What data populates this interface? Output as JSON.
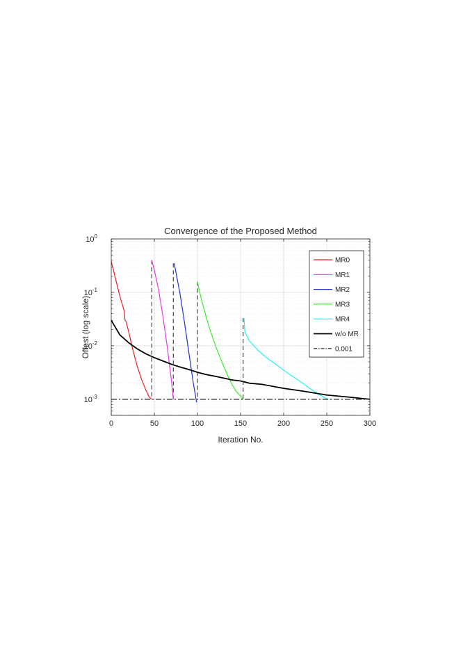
{
  "chart_data": {
    "type": "line",
    "title": "Convergence of the Proposed Method",
    "xlabel": "Iteration No.",
    "ylabel": "Offest (log scale)",
    "xlim": [
      0,
      300
    ],
    "ylim": [
      0.0005,
      1
    ],
    "yscale": "log",
    "grid": true,
    "minor_grid": true,
    "legend_position": "top-right",
    "x_ticks": [
      0,
      50,
      100,
      150,
      200,
      250,
      300
    ],
    "x_tick_labels": [
      "0",
      "50",
      "100",
      "150",
      "200",
      "250",
      "300"
    ],
    "y_ticks": [
      {
        "value": 1,
        "base": "10",
        "exp": "0"
      },
      {
        "value": 0.1,
        "base": "10",
        "exp": "-1"
      },
      {
        "value": 0.01,
        "base": "10",
        "exp": "-2"
      },
      {
        "value": 0.001,
        "base": "10",
        "exp": "-3"
      }
    ],
    "series": [
      {
        "name": "MR0",
        "color": "#e8211d",
        "style": "solid",
        "width": 1.2,
        "x": [
          0,
          5,
          10,
          15,
          16,
          17,
          20,
          25,
          30,
          35,
          40,
          44,
          47
        ],
        "y": [
          0.38,
          0.18,
          0.085,
          0.045,
          0.03,
          0.029,
          0.019,
          0.0085,
          0.0042,
          0.0024,
          0.0015,
          0.0011,
          0.001
        ]
      },
      {
        "name": "MR1",
        "color": "#e63ae6",
        "style": "solid",
        "width": 1.2,
        "x": [
          47,
          50,
          55,
          60,
          65,
          70,
          72
        ],
        "y": [
          0.4,
          0.26,
          0.11,
          0.035,
          0.0095,
          0.0021,
          0.001
        ]
      },
      {
        "name": "MR2",
        "color": "#1c2fd1",
        "style": "solid",
        "width": 1.2,
        "x": [
          73,
          75,
          80,
          85,
          90,
          95,
          99
        ],
        "y": [
          0.35,
          0.24,
          0.09,
          0.027,
          0.0075,
          0.0021,
          0.00088
        ]
      },
      {
        "name": "MR3",
        "color": "#3cea2a",
        "style": "solid",
        "width": 1.2,
        "x": [
          100,
          102,
          105,
          110,
          115,
          120,
          125,
          130,
          135,
          140,
          145,
          150,
          153
        ],
        "y": [
          0.16,
          0.11,
          0.07,
          0.035,
          0.019,
          0.011,
          0.0068,
          0.0043,
          0.0028,
          0.0019,
          0.0014,
          0.00115,
          0.001
        ]
      },
      {
        "name": "MR4",
        "color": "#27f2f2",
        "style": "solid",
        "width": 1.2,
        "x": [
          154,
          155,
          160,
          170,
          180,
          190,
          200,
          210,
          220,
          230,
          240,
          250,
          252
        ],
        "y": [
          0.033,
          0.018,
          0.0125,
          0.0083,
          0.006,
          0.0046,
          0.0035,
          0.0027,
          0.0021,
          0.0016,
          0.00125,
          0.00102,
          0.001
        ]
      },
      {
        "name": "w/o MR",
        "color": "#000000",
        "style": "solid",
        "width": 1.8,
        "x": [
          0,
          10,
          20,
          30,
          40,
          50,
          60,
          70,
          80,
          90,
          100,
          110,
          120,
          130,
          140,
          150,
          160,
          175,
          200,
          225,
          250,
          275,
          300
        ],
        "y": [
          0.03,
          0.016,
          0.0115,
          0.0088,
          0.0071,
          0.006,
          0.0052,
          0.0045,
          0.004,
          0.0036,
          0.0032,
          0.0029,
          0.0027,
          0.0025,
          0.0023,
          0.0022,
          0.002,
          0.0019,
          0.0016,
          0.0014,
          0.0012,
          0.0011,
          0.001
        ]
      },
      {
        "name": "0.001",
        "color": "#222222",
        "style": "dashdot",
        "width": 1.2,
        "x": [
          0,
          300
        ],
        "y": [
          0.001,
          0.001
        ]
      }
    ],
    "restart_markers": [
      {
        "x": 47,
        "y_top": 0.4
      },
      {
        "x": 72,
        "y_top": 0.35
      },
      {
        "x": 100,
        "y_top": 0.16
      },
      {
        "x": 153,
        "y_top": 0.033
      }
    ]
  }
}
